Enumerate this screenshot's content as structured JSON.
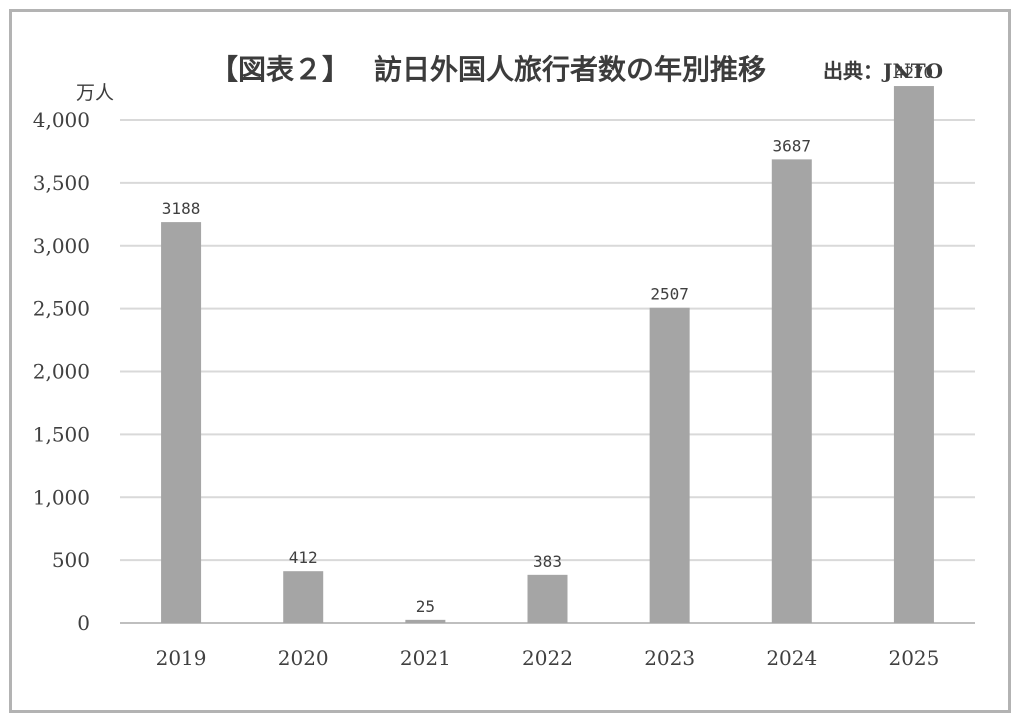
{
  "chart_data": {
    "type": "bar",
    "title_bracket": "【図表２】",
    "title": "訪日外国人旅行者数の年別推移",
    "source": "出典：JNTO",
    "ylabel": "万人",
    "categories": [
      "2019",
      "2020",
      "2021",
      "2022",
      "2023",
      "2024",
      "2025"
    ],
    "values": [
      3188,
      412,
      25,
      383,
      2507,
      3687,
      4270
    ],
    "data_labels": [
      "3188",
      "412",
      "25",
      "383",
      "2507",
      "3687",
      "4270"
    ],
    "ylim": [
      0,
      4000
    ],
    "yticks": [
      0,
      500,
      1000,
      1500,
      2000,
      2500,
      3000,
      3500,
      4000
    ],
    "ytick_labels": [
      "0",
      "500",
      "1,000",
      "1,500",
      "2,000",
      "2,500",
      "3,000",
      "3,500",
      "4,000"
    ],
    "grid": true,
    "bar_color": "#a5a5a5",
    "grid_color": "#d9d9d9"
  }
}
